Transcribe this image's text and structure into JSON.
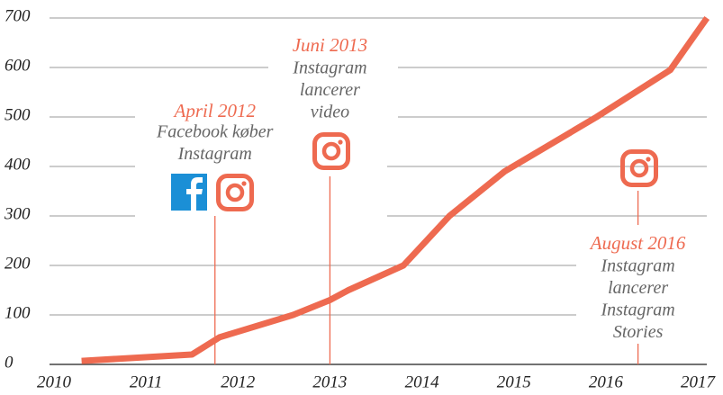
{
  "chart_data": {
    "type": "line",
    "x": [
      2010.3,
      2011.5,
      2011.8,
      2012.6,
      2013.0,
      2013.2,
      2013.8,
      2014.3,
      2014.9,
      2015.9,
      2016.7,
      2017.1
    ],
    "values": [
      7,
      20,
      55,
      100,
      130,
      150,
      200,
      300,
      390,
      500,
      595,
      700
    ],
    "color": "#ee6a50",
    "xlim": [
      2010,
      2017
    ],
    "xticks": [
      2010,
      2011,
      2012,
      2013,
      2014,
      2015,
      2016,
      2017
    ],
    "ylim": [
      0,
      700
    ],
    "yticks": [
      0,
      100,
      200,
      300,
      400,
      500,
      600,
      700
    ],
    "grid": true,
    "annotations": [
      {
        "x": 2011.75,
        "date": "April 2012",
        "lines": [
          "Facebook køber",
          "Instagram"
        ]
      },
      {
        "x": 2013.0,
        "date": "Juni 2013",
        "lines": [
          "Instagram",
          "lancerer",
          "video"
        ]
      },
      {
        "x": 2016.35,
        "date": "August 2016",
        "lines": [
          "Instagram",
          "lancerer",
          "Instagram",
          "Stories"
        ]
      }
    ]
  }
}
